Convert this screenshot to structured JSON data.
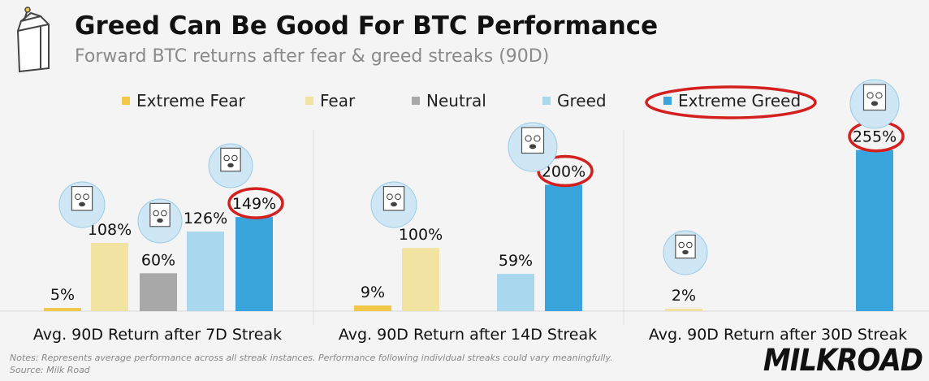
{
  "header": {
    "title": "Greed Can Be Good For BTC Performance",
    "subtitle": "Forward BTC returns after fear & greed streaks (90D)"
  },
  "legend": [
    {
      "label": "Extreme Fear",
      "color": "#f2c84b"
    },
    {
      "label": "Fear",
      "color": "#f3e3a2"
    },
    {
      "label": "Neutral",
      "color": "#a8a8a8"
    },
    {
      "label": "Greed",
      "color": "#a9d8ee"
    },
    {
      "label": "Extreme Greed",
      "color": "#3aa4dc"
    }
  ],
  "chart_data": [
    {
      "type": "bar",
      "xlabel": "Avg. 90D Return after 7D Streak",
      "categories": [
        "Extreme Fear",
        "Fear",
        "Neutral",
        "Greed",
        "Extreme Greed"
      ],
      "values": [
        5,
        108,
        60,
        126,
        149
      ],
      "labels": [
        "5%",
        "108%",
        "60%",
        "126%",
        "149%"
      ],
      "ylim": [
        0,
        300
      ]
    },
    {
      "type": "bar",
      "xlabel": "Avg. 90D Return after 14D Streak",
      "categories": [
        "Extreme Fear",
        "Fear",
        "Greed",
        "Extreme Greed"
      ],
      "values": [
        9,
        100,
        59,
        200
      ],
      "labels": [
        "9%",
        "100%",
        "59%",
        "200%"
      ],
      "ylim": [
        0,
        300
      ]
    },
    {
      "type": "bar",
      "xlabel": "Avg. 90D Return after 30D Streak",
      "categories": [
        "Fear",
        "Extreme Greed"
      ],
      "values": [
        2,
        255
      ],
      "labels": [
        "2%",
        "255%"
      ],
      "ylim": [
        0,
        300
      ]
    }
  ],
  "annotations": {
    "circled": [
      "Extreme Greed",
      "149%",
      "200%",
      "255%"
    ],
    "circle_color": "#d41f1f"
  },
  "footer": {
    "notes": "Notes: Represents average performance across all streak instances. Performance following individual streaks could vary meaningfully.",
    "source": "Source: Milk Road",
    "brand": "MILKROAD"
  }
}
